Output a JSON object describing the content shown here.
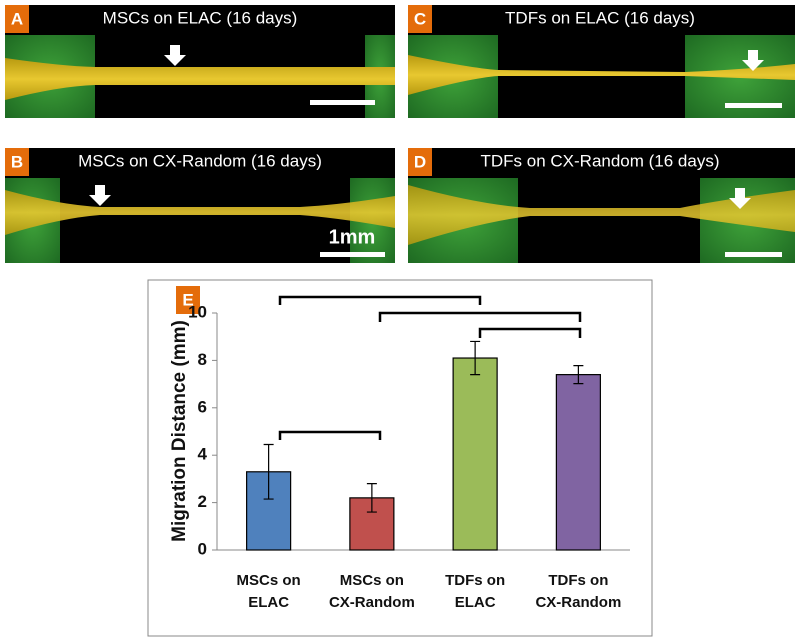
{
  "panels": [
    {
      "label": "A",
      "title": "MSCs on ELAC (16 days)"
    },
    {
      "label": "B",
      "title": "MSCs on CX-Random (16 days)"
    },
    {
      "label": "C",
      "title": "TDFs on ELAC (16 days)"
    },
    {
      "label": "D",
      "title": "TDFs on CX-Random (16 days)"
    }
  ],
  "scale_bar": "1mm",
  "chart_data": {
    "type": "bar",
    "label": "E",
    "y_label": "Migration Distance (mm)",
    "categories": [
      "MSCs on ELAC",
      "MSCs on CX-Random",
      "TDFs on ELAC",
      "TDFs on CX-Random"
    ],
    "values": [
      3.3,
      2.2,
      8.1,
      7.4
    ],
    "errors": [
      1.15,
      0.6,
      0.7,
      0.38
    ],
    "colors": [
      "#4f81bd",
      "#c0504d",
      "#9bbb59",
      "#8064a2"
    ],
    "ylim": [
      0,
      10
    ],
    "yticks": [
      0,
      2,
      4,
      6,
      8,
      10
    ]
  }
}
